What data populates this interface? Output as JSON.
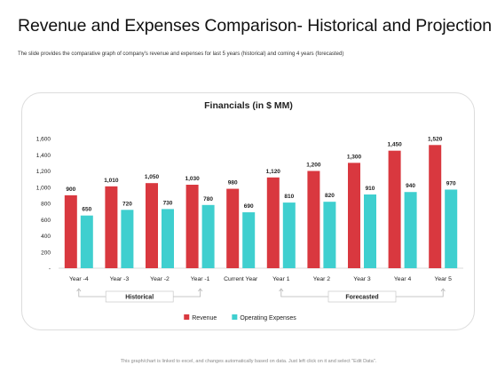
{
  "page": {
    "title": "Revenue and Expenses Comparison- Historical and Projection",
    "subtitle": "The slide provides the comparative graph of company's revenue and expenses for last 5 years (historical)  and coming  4 years (forecasted)",
    "footer": "This graph/chart is linked to excel, and changes automatically based on data. Just left click on it and select \"Edit Data\"."
  },
  "chart_data": {
    "type": "bar",
    "title": "Financials (in $ MM)",
    "categories": [
      "Year -4",
      "Year -3",
      "Year -2",
      "Year -1",
      "Current Year",
      "Year 1",
      "Year 2",
      "Year 3",
      "Year 4",
      "Year 5"
    ],
    "series": [
      {
        "name": "Revenue",
        "color": "#d9383f",
        "values": [
          900,
          1010,
          1050,
          1030,
          980,
          1120,
          1200,
          1300,
          1450,
          1520
        ]
      },
      {
        "name": "Operating Expenses",
        "color": "#3fcfcf",
        "values": [
          650,
          720,
          730,
          780,
          690,
          810,
          820,
          910,
          940,
          970
        ]
      }
    ],
    "ylim": [
      0,
      1600
    ],
    "yticks": [
      0,
      200,
      400,
      600,
      800,
      1000,
      1200,
      1400,
      1600
    ],
    "ytick_labels": [
      "-",
      "200",
      "400",
      "600",
      "800",
      "1,000",
      "1,200",
      "1,400",
      "1,600"
    ],
    "data_labels": true,
    "grid": false,
    "legend": "bottom",
    "groups": [
      {
        "label": "Historical",
        "first": 0,
        "last": 3
      },
      {
        "label": "Forecasted",
        "first": 5,
        "last": 9
      }
    ]
  }
}
